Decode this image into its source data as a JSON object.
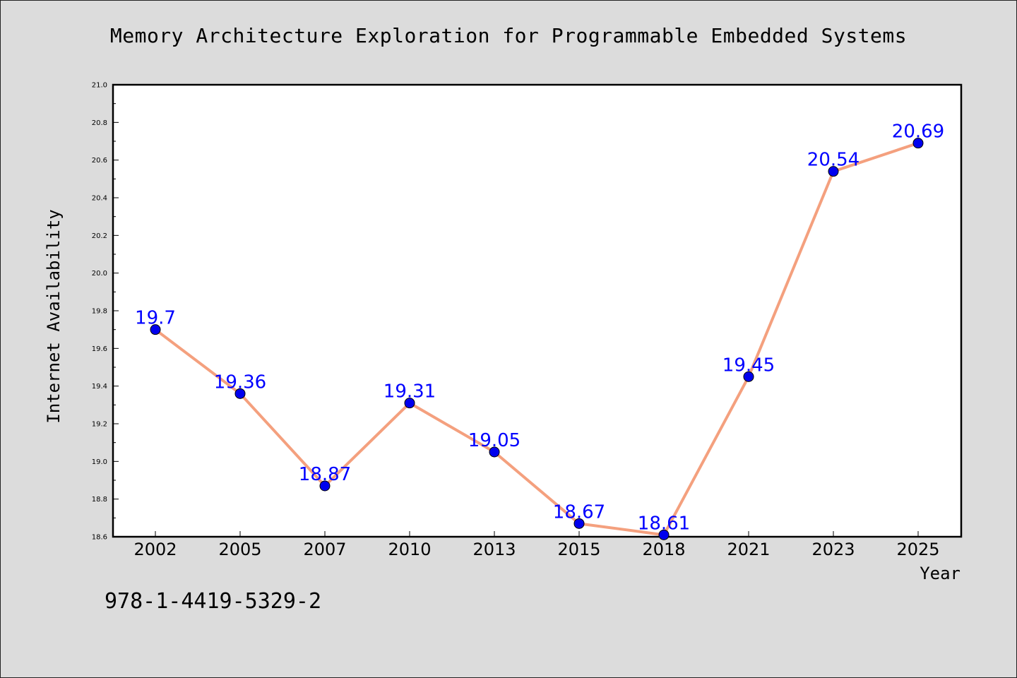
{
  "chart_data": {
    "type": "line",
    "title": "Memory Architecture Exploration for Programmable Embedded Systems",
    "xlabel": "Year",
    "ylabel": "Internet Availability",
    "categories": [
      "2002",
      "2005",
      "2007",
      "2010",
      "2013",
      "2015",
      "2018",
      "2021",
      "2023",
      "2025"
    ],
    "series": [
      {
        "values": [
          19.7,
          19.36,
          18.87,
          19.31,
          19.05,
          18.67,
          18.61,
          19.45,
          20.54,
          20.69
        ],
        "data_labels": [
          "19.7",
          "19.36",
          "18.87",
          "19.31",
          "19.05",
          "18.67",
          "18.61",
          "19.45",
          "20.54",
          "20.69"
        ],
        "line_color": "#f4a07e",
        "marker_color": "#0000ee"
      }
    ],
    "ylim": [
      18.6,
      21.0
    ],
    "yticks": [
      "18.6",
      "18.8",
      "19.0",
      "19.2",
      "19.4",
      "19.6",
      "19.8",
      "20.0",
      "20.2",
      "20.4",
      "20.6",
      "20.8",
      "21.0"
    ],
    "grid": false,
    "legend": "none"
  },
  "footer": {
    "isbn": "978-1-4419-5329-2"
  },
  "colors": {
    "background": "#dcdcdc",
    "plot_background": "#ffffff",
    "data_label": "#0000ff"
  }
}
